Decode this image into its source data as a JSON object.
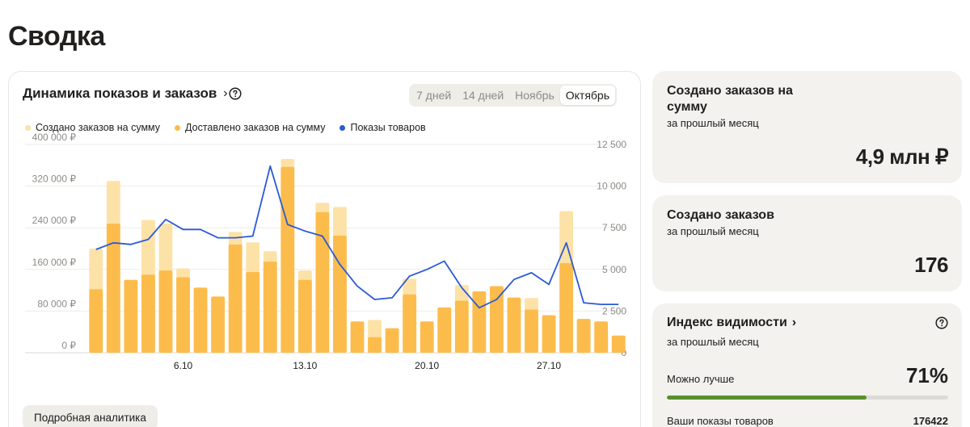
{
  "page": {
    "title": "Сводка"
  },
  "chart_card": {
    "heading": "Динамика показов и заказов",
    "tabs": [
      "7 дней",
      "14 дней",
      "Ноябрь",
      "Октябрь"
    ],
    "active_tab": "Октябрь",
    "analytics_button": "Подробная аналитика"
  },
  "chart_data": {
    "type": "bar",
    "legend_position": "top-left",
    "grid": true,
    "legend": [
      {
        "label": "Создано заказов на сумму",
        "color": "#fde2a8"
      },
      {
        "label": "Доставлено заказов на сумму",
        "color": "#fcbc4c"
      },
      {
        "label": "Показы товаров",
        "color": "#2a5ad6"
      }
    ],
    "left_axis": {
      "ticks": [
        "0 ₽",
        "80 000 ₽",
        "160 000 ₽",
        "240 000 ₽",
        "320 000 ₽",
        "400 000 ₽"
      ],
      "ylim": [
        0,
        400000
      ]
    },
    "right_axis": {
      "ticks": [
        "0",
        "2 500",
        "5 000",
        "7 500",
        "10 000",
        "12 500"
      ],
      "ylim": [
        0,
        12500
      ]
    },
    "x_ticks": [
      {
        "label": "6.10",
        "day": 6
      },
      {
        "label": "13.10",
        "day": 13
      },
      {
        "label": "20.10",
        "day": 20
      },
      {
        "label": "27.10",
        "day": 27
      }
    ],
    "days": [
      1,
      2,
      3,
      4,
      5,
      6,
      7,
      8,
      9,
      10,
      11,
      12,
      13,
      14,
      15,
      16,
      17,
      18,
      19,
      20,
      21,
      22,
      23,
      24,
      25,
      26,
      27,
      28,
      29,
      30,
      31
    ],
    "series": [
      {
        "name": "Создано заказов на сумму",
        "values": [
          200000,
          330000,
          140000,
          255000,
          248000,
          162000,
          125000,
          108000,
          232000,
          212000,
          195000,
          372000,
          158000,
          288000,
          280000,
          60000,
          63000,
          47000,
          142000,
          60000,
          87000,
          130000,
          118000,
          128000,
          106000,
          105000,
          72000,
          272000,
          65000,
          60000,
          33000
        ]
      },
      {
        "name": "Доставлено заказов на сумму",
        "values": [
          122000,
          248000,
          140000,
          150000,
          158000,
          145000,
          125000,
          108000,
          208000,
          155000,
          175000,
          357000,
          140000,
          270000,
          225000,
          60000,
          30000,
          47000,
          112000,
          60000,
          87000,
          100000,
          118000,
          128000,
          106000,
          83000,
          72000,
          172000,
          65000,
          60000,
          33000
        ]
      },
      {
        "name": "Показы товаров",
        "values": [
          6200,
          6600,
          6500,
          6800,
          8000,
          7400,
          7400,
          6900,
          6900,
          7000,
          11200,
          7700,
          7300,
          7000,
          5300,
          4000,
          3200,
          3300,
          4600,
          5000,
          5500,
          3900,
          2700,
          3200,
          4400,
          4800,
          4100,
          6600,
          3000,
          2900,
          2900
        ]
      }
    ]
  },
  "cards": {
    "orders_sum": {
      "title": "Создано заказов на сумму",
      "subtitle": "за прошлый месяц",
      "value": "4,9 млн ₽"
    },
    "orders_count": {
      "title": "Создано заказов",
      "subtitle": "за прошлый месяц",
      "value": "176"
    },
    "visibility": {
      "title": "Индекс видимости",
      "subtitle": "за прошлый месяц",
      "level_label": "Можно лучше",
      "percent_text": "71%",
      "percent": 71,
      "bar_color": "#5a8f2e",
      "shows_label": "Ваши показы товаров",
      "shows_value": "176422"
    }
  }
}
